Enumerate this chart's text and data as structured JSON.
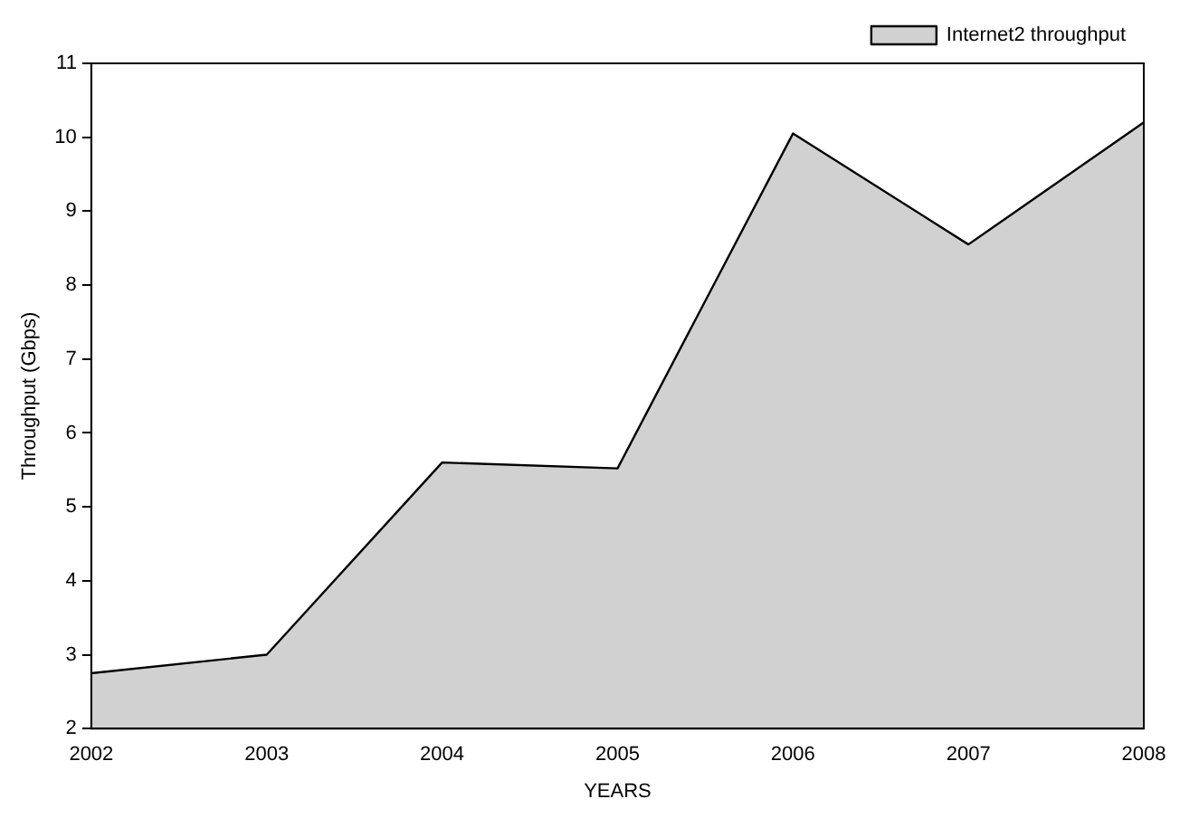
{
  "chart_data": {
    "type": "area",
    "xlabel": "YEARS",
    "ylabel": "Throughput (Gbps)",
    "categories": [
      "2002",
      "2003",
      "2004",
      "2005",
      "2006",
      "2007",
      "2008"
    ],
    "series": [
      {
        "name": "Internet2 throughput",
        "color": "#000000",
        "values": [
          2.75,
          3.0,
          5.6,
          5.52,
          10.05,
          8.55,
          10.2
        ]
      }
    ],
    "ylim": [
      2,
      11
    ],
    "yticks": [
      2,
      3,
      4,
      5,
      6,
      7,
      8,
      9,
      10,
      11
    ],
    "legend": "top right"
  }
}
